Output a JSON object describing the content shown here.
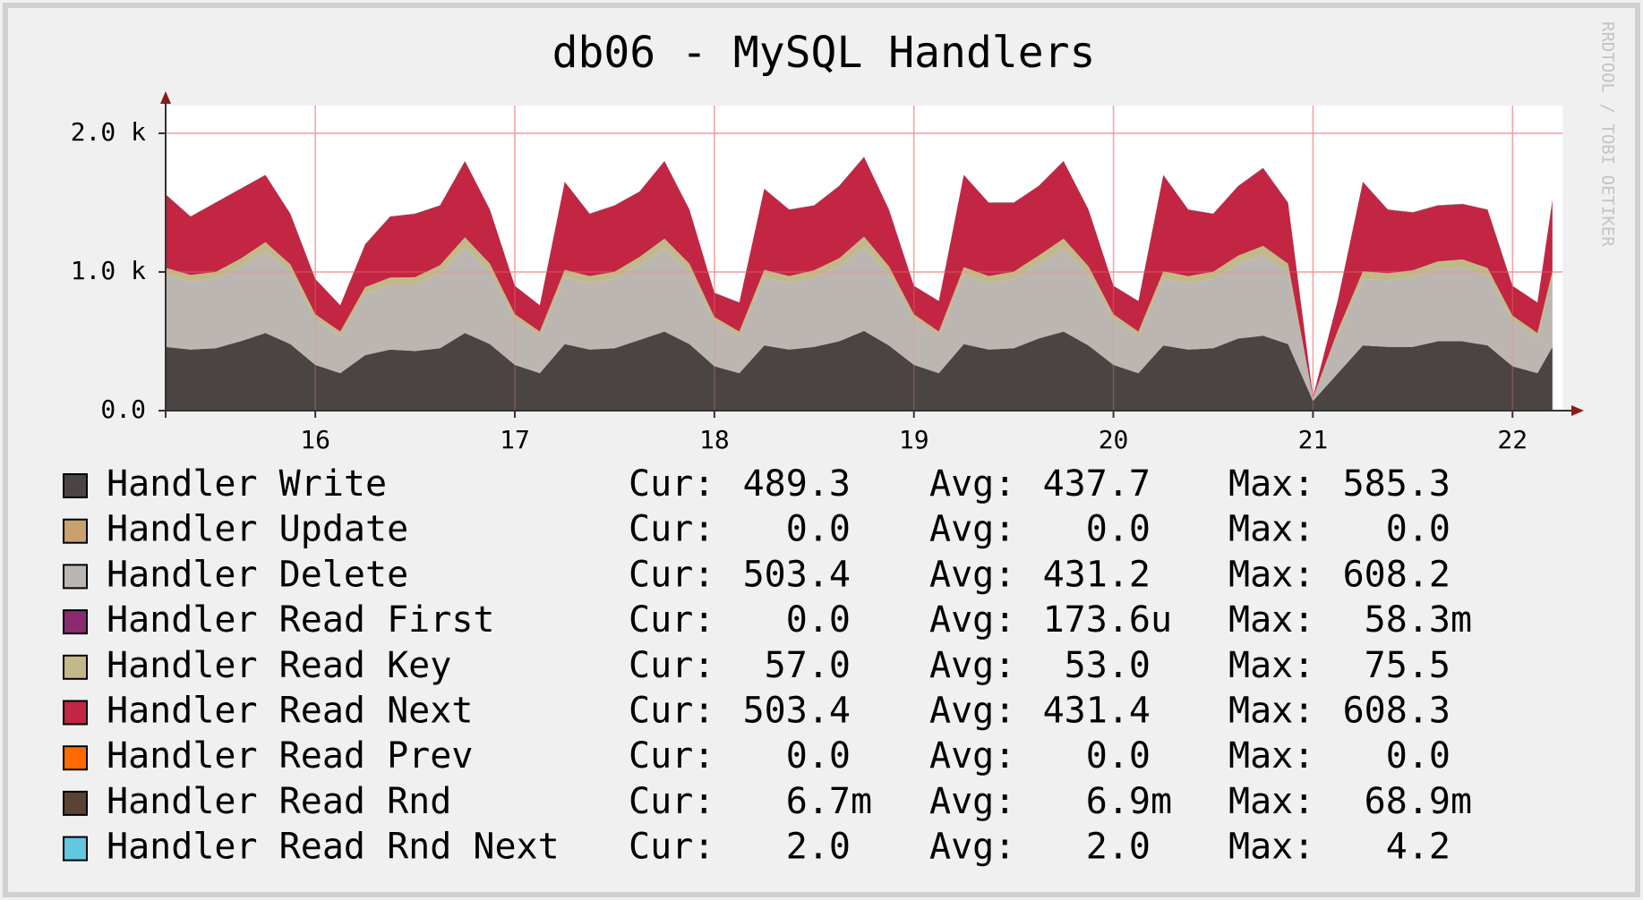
{
  "chart_data": {
    "type": "stacked-area",
    "title": "db06 - MySQL Handlers",
    "watermark": "RRDTOOL / TOBI OETIKER",
    "legend_columns": [
      "Cur:",
      "Avg:",
      "Max:"
    ],
    "xlim": [
      15.25,
      22.25
    ],
    "xticks": [
      16,
      17,
      18,
      19,
      20,
      21,
      22
    ],
    "ylim": [
      0,
      2200
    ],
    "yticks": [
      {
        "value": 0,
        "label": "0.0"
      },
      {
        "value": 1000,
        "label": "1.0 k"
      },
      {
        "value": 2000,
        "label": "2.0 k"
      }
    ],
    "grid": true,
    "x": [
      15.25,
      15.375,
      15.5,
      15.625,
      15.75,
      15.875,
      16,
      16.125,
      16.25,
      16.375,
      16.5,
      16.625,
      16.75,
      16.875,
      17,
      17.125,
      17.25,
      17.375,
      17.5,
      17.625,
      17.75,
      17.875,
      18,
      18.125,
      18.25,
      18.375,
      18.5,
      18.625,
      18.75,
      18.875,
      19,
      19.125,
      19.25,
      19.375,
      19.5,
      19.625,
      19.75,
      19.875,
      20,
      20.125,
      20.25,
      20.375,
      20.5,
      20.625,
      20.75,
      20.875,
      21,
      21.125,
      21.25,
      21.375,
      21.5,
      21.625,
      21.75,
      21.875,
      22,
      22.125,
      22.2
    ],
    "series": [
      {
        "name": "Handler Write",
        "color": "#4a4542",
        "summary": [
          "489.3",
          "437.7",
          "585.3"
        ],
        "values": [
          460,
          440,
          450,
          500,
          560,
          480,
          330,
          270,
          400,
          440,
          430,
          450,
          560,
          480,
          330,
          270,
          480,
          440,
          450,
          510,
          570,
          480,
          320,
          270,
          470,
          440,
          460,
          500,
          575,
          470,
          330,
          270,
          480,
          440,
          450,
          520,
          570,
          470,
          330,
          270,
          470,
          440,
          450,
          520,
          540,
          480,
          70,
          270,
          470,
          460,
          460,
          500,
          500,
          470,
          320,
          270,
          460
        ]
      },
      {
        "name": "Handler Update",
        "color": "#c9a070",
        "summary": [
          "0.0",
          "0.0",
          "0.0"
        ],
        "values": [
          0,
          0,
          0,
          0,
          0,
          0,
          0,
          0,
          0,
          0,
          0,
          0,
          0,
          0,
          0,
          0,
          0,
          0,
          0,
          0,
          0,
          0,
          0,
          0,
          0,
          0,
          0,
          0,
          0,
          0,
          0,
          0,
          0,
          0,
          0,
          0,
          0,
          0,
          0,
          0,
          0,
          0,
          0,
          0,
          0,
          0,
          0,
          0,
          0,
          0,
          0,
          0,
          0,
          0,
          0,
          0,
          0
        ]
      },
      {
        "name": "Handler Delete",
        "color": "#bbb6b1",
        "summary": [
          "503.4",
          "431.2",
          "608.2"
        ],
        "values": [
          520,
          490,
          500,
          540,
          590,
          520,
          330,
          270,
          440,
          470,
          480,
          540,
          620,
          520,
          330,
          270,
          480,
          480,
          500,
          540,
          600,
          520,
          320,
          270,
          490,
          480,
          500,
          540,
          610,
          510,
          330,
          270,
          500,
          480,
          500,
          540,
          600,
          510,
          330,
          270,
          480,
          480,
          500,
          540,
          580,
          520,
          20,
          280,
          480,
          480,
          500,
          520,
          530,
          500,
          330,
          260,
          490
        ]
      },
      {
        "name": "Handler Read First",
        "color": "#8b2a6e",
        "summary": [
          "0.0",
          "173.6u",
          "58.3m"
        ],
        "values": [
          0,
          0,
          0,
          0,
          0,
          0,
          0,
          0,
          0,
          0,
          0,
          0,
          0,
          0,
          0,
          0,
          0,
          0,
          0,
          0,
          0,
          0,
          0,
          0,
          0,
          0,
          0,
          0,
          0,
          0,
          0,
          0,
          0,
          0,
          0,
          0,
          0,
          0,
          0,
          0,
          0,
          0,
          0,
          0,
          0,
          0,
          0,
          0,
          0,
          0,
          0,
          0,
          0,
          0,
          0,
          0,
          0
        ]
      },
      {
        "name": "Handler Read Key",
        "color": "#c2b98a",
        "summary": [
          "57.0",
          "53.0",
          "75.5"
        ],
        "values": [
          50,
          48,
          50,
          55,
          65,
          55,
          35,
          30,
          50,
          50,
          52,
          58,
          70,
          60,
          35,
          30,
          55,
          50,
          52,
          58,
          70,
          60,
          35,
          30,
          55,
          50,
          52,
          58,
          70,
          60,
          35,
          30,
          55,
          50,
          52,
          58,
          70,
          60,
          35,
          30,
          55,
          50,
          52,
          58,
          68,
          60,
          3,
          30,
          55,
          50,
          52,
          56,
          60,
          58,
          35,
          30,
          57
        ]
      },
      {
        "name": "Handler Read Next",
        "color": "#c22642",
        "summary": [
          "503.4",
          "431.4",
          "608.3"
        ],
        "values": [
          530,
          422,
          500,
          505,
          485,
          365,
          255,
          190,
          310,
          440,
          458,
          432,
          550,
          390,
          205,
          190,
          635,
          450,
          478,
          472,
          560,
          390,
          175,
          210,
          585,
          480,
          468,
          522,
          575,
          410,
          205,
          220,
          665,
          530,
          498,
          502,
          560,
          410,
          205,
          220,
          695,
          480,
          418,
          502,
          562,
          440,
          7,
          220,
          645,
          460,
          418,
          404,
          400,
          422,
          215,
          220,
          513
        ]
      },
      {
        "name": "Handler Read Prev",
        "color": "#ff6a00",
        "summary": [
          "0.0",
          "0.0",
          "0.0"
        ],
        "values": [
          0,
          0,
          0,
          0,
          0,
          0,
          0,
          0,
          0,
          0,
          0,
          0,
          0,
          0,
          0,
          0,
          0,
          0,
          0,
          0,
          0,
          0,
          0,
          0,
          0,
          0,
          0,
          0,
          0,
          0,
          0,
          0,
          0,
          0,
          0,
          0,
          0,
          0,
          0,
          0,
          0,
          0,
          0,
          0,
          0,
          0,
          0,
          0,
          0,
          0,
          0,
          0,
          0,
          0,
          0,
          0,
          0
        ]
      },
      {
        "name": "Handler Read Rnd",
        "color": "#5c4233",
        "summary": [
          "6.7m",
          "6.9m",
          "68.9m"
        ],
        "values": [
          0.007,
          0.007,
          0.007,
          0.007,
          0.007,
          0.007,
          0.007,
          0.007,
          0.007,
          0.007,
          0.007,
          0.007,
          0.007,
          0.007,
          0.007,
          0.007,
          0.007,
          0.007,
          0.007,
          0.007,
          0.007,
          0.007,
          0.007,
          0.007,
          0.007,
          0.007,
          0.007,
          0.007,
          0.007,
          0.007,
          0.007,
          0.007,
          0.007,
          0.007,
          0.007,
          0.007,
          0.007,
          0.007,
          0.007,
          0.007,
          0.007,
          0.007,
          0.007,
          0.007,
          0.007,
          0.007,
          0.007,
          0.007,
          0.007,
          0.007,
          0.007,
          0.007,
          0.007,
          0.007,
          0.007,
          0.007,
          0.007
        ]
      },
      {
        "name": "Handler Read Rnd Next",
        "color": "#62c8e0",
        "summary": [
          "2.0",
          "2.0",
          "4.2"
        ],
        "values": [
          2,
          2,
          2,
          2,
          2,
          2,
          2,
          2,
          2,
          2,
          2,
          2,
          2,
          2,
          2,
          2,
          2,
          2,
          2,
          2,
          2,
          2,
          2,
          2,
          2,
          2,
          2,
          2,
          2,
          2,
          2,
          2,
          2,
          2,
          2,
          2,
          2,
          2,
          2,
          2,
          2,
          2,
          2,
          2,
          2,
          2,
          2,
          2,
          2,
          2,
          2,
          2,
          2,
          2,
          2,
          2,
          2
        ]
      }
    ]
  }
}
